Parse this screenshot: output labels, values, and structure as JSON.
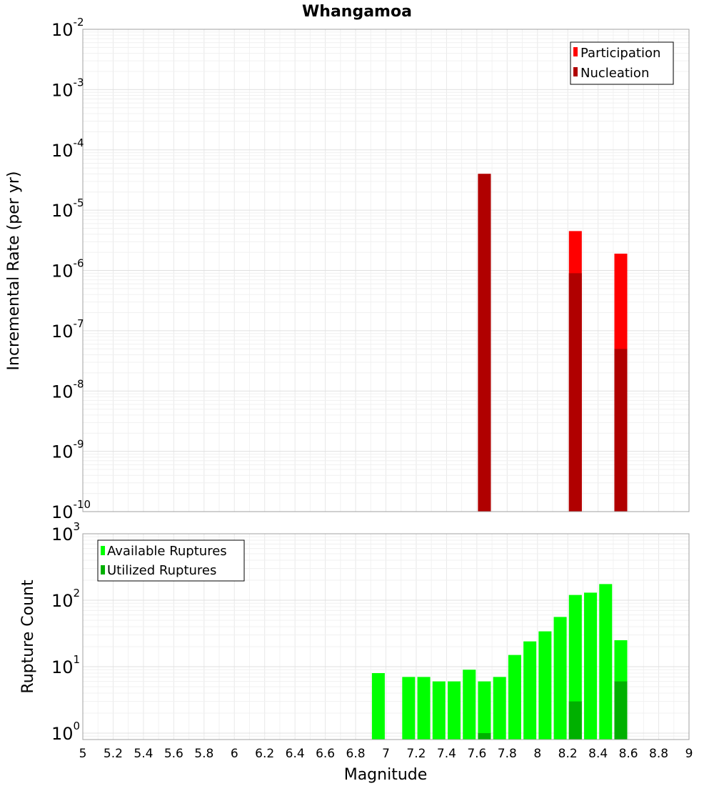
{
  "chart_data": [
    {
      "type": "bar",
      "title": "Whangamoa",
      "xlabel": "",
      "ylabel": "Incremental Rate (per yr)",
      "yscale": "log",
      "ylim": [
        1e-10,
        0.01
      ],
      "xlim": [
        5,
        9
      ],
      "ytick_labels": [
        {
          "base": "10",
          "exp": "-10",
          "value": 1e-10
        },
        {
          "base": "10",
          "exp": "-9",
          "value": 1e-09
        },
        {
          "base": "10",
          "exp": "-8",
          "value": 1e-08
        },
        {
          "base": "10",
          "exp": "-7",
          "value": 1e-07
        },
        {
          "base": "10",
          "exp": "-6",
          "value": 1e-06
        },
        {
          "base": "10",
          "exp": "-5",
          "value": 1e-05
        },
        {
          "base": "10",
          "exp": "-4",
          "value": 0.0001
        },
        {
          "base": "10",
          "exp": "-3",
          "value": 0.001
        },
        {
          "base": "10",
          "exp": "-2",
          "value": 0.01
        }
      ],
      "grid": true,
      "legend_position": "top-right",
      "series": [
        {
          "name": "Participation",
          "color": "#ff0000",
          "x": [
            7.65,
            8.25,
            8.55
          ],
          "values": [
            4e-05,
            4.5e-06,
            1.9e-06
          ]
        },
        {
          "name": "Nucleation",
          "color": "#b00000",
          "x": [
            7.65,
            8.25,
            8.55
          ],
          "values": [
            4e-05,
            9e-07,
            5e-08
          ]
        }
      ]
    },
    {
      "type": "bar",
      "title": "",
      "xlabel": "Magnitude",
      "ylabel": "Rupture Count",
      "yscale": "log",
      "ylim": [
        0.8,
        1000
      ],
      "xlim": [
        5,
        9
      ],
      "ytick_labels": [
        {
          "base": "10",
          "exp": "0",
          "value": 1
        },
        {
          "base": "10",
          "exp": "1",
          "value": 10
        },
        {
          "base": "10",
          "exp": "2",
          "value": 100
        },
        {
          "base": "10",
          "exp": "3",
          "value": 1000
        }
      ],
      "x_ticks": [
        "5",
        "5.2",
        "5.4",
        "5.6",
        "5.8",
        "6",
        "6.2",
        "6.4",
        "6.6",
        "6.8",
        "7",
        "7.2",
        "7.4",
        "7.6",
        "7.8",
        "8",
        "8.2",
        "8.4",
        "8.6",
        "8.8",
        "9"
      ],
      "grid": true,
      "legend_position": "top-left",
      "series": [
        {
          "name": "Available Ruptures",
          "color": "#00ff00",
          "x": [
            6.95,
            7.15,
            7.25,
            7.35,
            7.45,
            7.55,
            7.65,
            7.75,
            7.85,
            7.95,
            8.05,
            8.15,
            8.25,
            8.35,
            8.45,
            8.55
          ],
          "values": [
            8,
            7,
            7,
            6,
            6,
            9,
            6,
            7,
            15,
            24,
            34,
            56,
            120,
            130,
            175,
            25
          ]
        },
        {
          "name": "Utilized Ruptures",
          "color": "#00b000",
          "x": [
            7.65,
            8.25,
            8.55
          ],
          "values": [
            1,
            3,
            6
          ]
        }
      ]
    }
  ]
}
